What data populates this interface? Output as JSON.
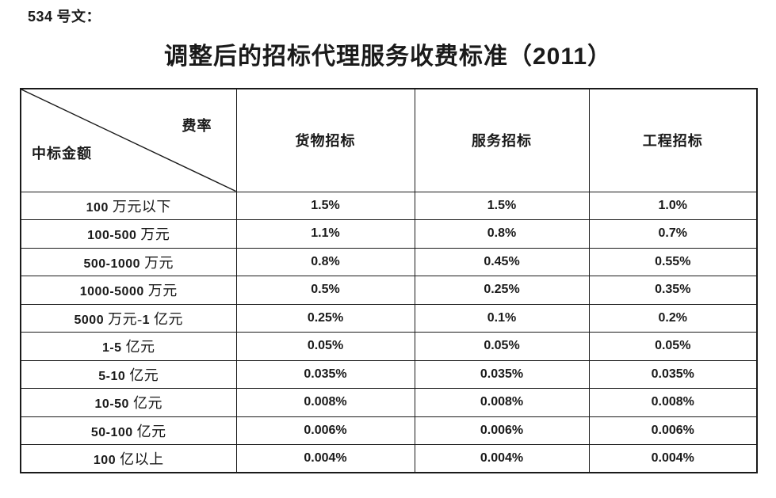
{
  "doc_label": "534 号文：",
  "title": "调整后的招标代理服务收费标准（2011）",
  "table": {
    "corner": {
      "top_right": "费率",
      "bottom_left": "中标金额"
    },
    "columns": [
      "货物招标",
      "服务招标",
      "工程招标"
    ],
    "rows": [
      {
        "label": "100 万元以下",
        "values": [
          "1.5%",
          "1.5%",
          "1.0%"
        ]
      },
      {
        "label": "100-500 万元",
        "values": [
          "1.1%",
          "0.8%",
          "0.7%"
        ]
      },
      {
        "label": "500-1000 万元",
        "values": [
          "0.8%",
          "0.45%",
          "0.55%"
        ]
      },
      {
        "label": "1000-5000 万元",
        "values": [
          "0.5%",
          "0.25%",
          "0.35%"
        ]
      },
      {
        "label": "5000 万元-1 亿元",
        "values": [
          "0.25%",
          "0.1%",
          "0.2%"
        ]
      },
      {
        "label": "1-5 亿元",
        "values": [
          "0.05%",
          "0.05%",
          "0.05%"
        ]
      },
      {
        "label": "5-10 亿元",
        "values": [
          "0.035%",
          "0.035%",
          "0.035%"
        ]
      },
      {
        "label": "10-50 亿元",
        "values": [
          "0.008%",
          "0.008%",
          "0.008%"
        ]
      },
      {
        "label": "50-100 亿元",
        "values": [
          "0.006%",
          "0.006%",
          "0.006%"
        ]
      },
      {
        "label": "100 亿以上",
        "values": [
          "0.004%",
          "0.004%",
          "0.004%"
        ]
      }
    ]
  }
}
